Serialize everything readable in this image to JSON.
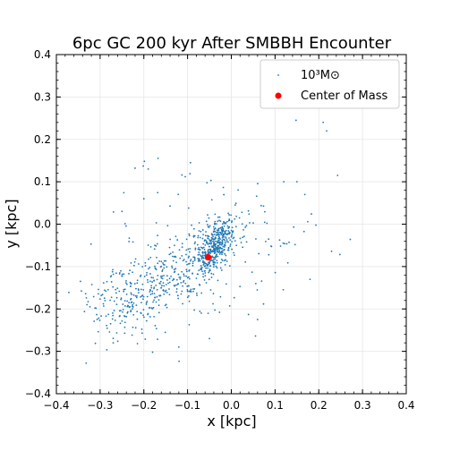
{
  "chart_data": {
    "type": "scatter",
    "title": "6pc GC 200 kyr After SMBBH Encounter",
    "xlabel": "x [kpc]",
    "ylabel": "y [kpc]",
    "xlim": [
      -0.4,
      0.4
    ],
    "ylim": [
      -0.4,
      0.4
    ],
    "xticks": [
      -0.4,
      -0.3,
      -0.2,
      -0.1,
      0.0,
      0.1,
      0.2,
      0.3,
      0.4
    ],
    "yticks": [
      -0.4,
      -0.3,
      -0.2,
      -0.1,
      0.0,
      0.1,
      0.2,
      0.3,
      0.4
    ],
    "xtick_labels": [
      "−0.4",
      "−0.3",
      "−0.2",
      "−0.1",
      "0.0",
      "0.1",
      "0.2",
      "0.3",
      "0.4"
    ],
    "ytick_labels": [
      "−0.4",
      "−0.3",
      "−0.2",
      "−0.1",
      "0.0",
      "0.1",
      "0.2",
      "0.3",
      "0.4"
    ],
    "grid": true,
    "legend_position": "top-right",
    "series": [
      {
        "name": "10³M⊙",
        "color": "#1f77b4",
        "marker": "dot",
        "points_description": "approximately 1000 star particles: dense core near (0.0, -0.03), elongated tail toward (-0.25, -0.2), sparse halo",
        "points": [
          [
            0.21,
            0.24
          ],
          [
            0.218,
            0.22
          ],
          [
            0.148,
            0.245
          ],
          [
            0.243,
            0.115
          ],
          [
            0.272,
            -0.036
          ],
          [
            0.18,
            -0.13
          ],
          [
            -0.33,
            -0.19
          ],
          [
            -0.345,
            -0.135
          ],
          [
            -0.27,
            -0.28
          ],
          [
            -0.18,
            -0.302
          ],
          [
            -0.12,
            -0.29
          ],
          [
            -0.05,
            -0.27
          ],
          [
            0.06,
            -0.225
          ],
          [
            -0.22,
            0.132
          ],
          [
            -0.19,
            0.13
          ],
          [
            0.15,
            0.1
          ],
          [
            0.168,
            0.07
          ],
          [
            0.12,
            0.1
          ],
          [
            -0.2,
            0.06
          ],
          [
            -0.25,
            0.03
          ]
        ]
      },
      {
        "name": "Center of Mass",
        "color": "#ff0000",
        "marker": "circle",
        "points": [
          [
            -0.053,
            -0.078
          ]
        ]
      }
    ]
  }
}
